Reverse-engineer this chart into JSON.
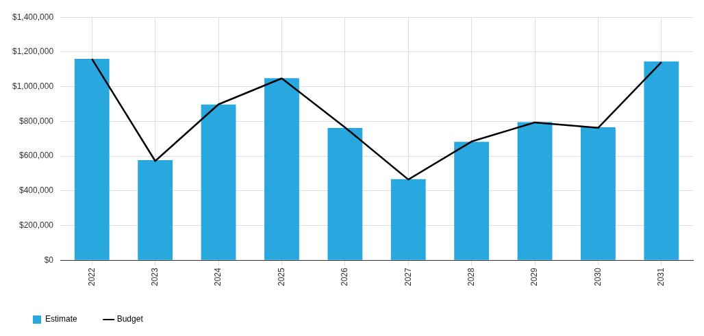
{
  "chart_data": {
    "type": "bar",
    "categories": [
      "2022",
      "2023",
      "2024",
      "2025",
      "2026",
      "2027",
      "2028",
      "2029",
      "2030",
      "2031"
    ],
    "series": [
      {
        "name": "Estimate",
        "color": "#29a8e0",
        "values": [
          1160000,
          577000,
          897000,
          1049000,
          762000,
          467000,
          682000,
          796000,
          766000,
          1146000
        ]
      },
      {
        "name": "Budget",
        "type": "line",
        "color": "#000000",
        "values": [
          1160000,
          572000,
          898000,
          1048000,
          765000,
          465000,
          684000,
          794000,
          763000,
          1141000
        ]
      }
    ],
    "ylim": [
      0,
      1400000
    ],
    "yticks": [
      {
        "value": 0,
        "label": "$0"
      },
      {
        "value": 200000,
        "label": "$200,000"
      },
      {
        "value": 400000,
        "label": "$400,000"
      },
      {
        "value": 600000,
        "label": "$600,000"
      },
      {
        "value": 800000,
        "label": "$800,000"
      },
      {
        "value": 1000000,
        "label": "$1,000,000"
      },
      {
        "value": 1200000,
        "label": "$1,200,000"
      },
      {
        "value": 1400000,
        "label": "$1,400,000"
      }
    ],
    "grid": true,
    "legend": "bottom left",
    "marker": "none",
    "line_style": "solid"
  }
}
